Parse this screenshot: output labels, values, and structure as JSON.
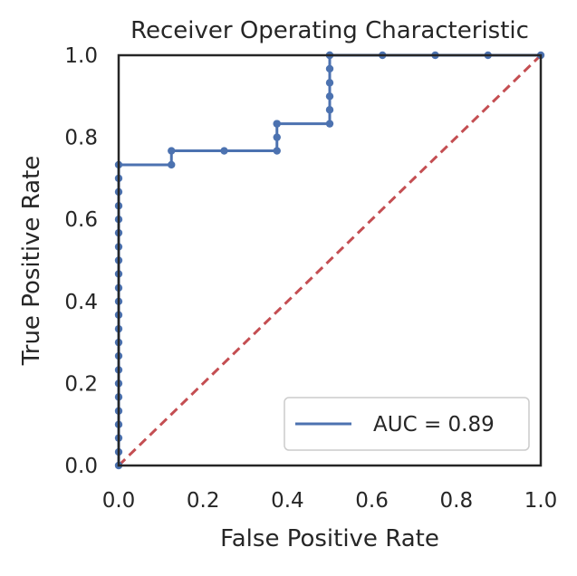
{
  "chart_data": {
    "type": "line",
    "title": "Receiver Operating Characteristic",
    "xlabel": "False Positive Rate",
    "ylabel": "True Positive Rate",
    "xlim": [
      0.0,
      1.0
    ],
    "ylim": [
      0.0,
      1.0
    ],
    "xticks": [
      "0.0",
      "0.2",
      "0.4",
      "0.6",
      "0.8",
      "1.0"
    ],
    "yticks": [
      "0.0",
      "0.2",
      "0.4",
      "0.6",
      "0.8",
      "1.0"
    ],
    "grid": false,
    "legend_position": "lower-right",
    "series": [
      {
        "name": "AUC = 0.89",
        "color": "#4c72b0",
        "style": "solid-with-markers",
        "x": [
          0,
          0,
          0,
          0,
          0,
          0,
          0,
          0,
          0,
          0,
          0,
          0,
          0,
          0,
          0,
          0,
          0,
          0,
          0,
          0,
          0,
          0,
          0,
          0.125,
          0.125,
          0.25,
          0.375,
          0.375,
          0.375,
          0.375,
          0.5,
          0.5,
          0.5,
          0.5,
          0.5,
          0.5,
          0.5,
          0.625,
          0.75,
          0.875,
          1.0
        ],
        "y": [
          0.0,
          0.033,
          0.067,
          0.1,
          0.133,
          0.167,
          0.2,
          0.233,
          0.267,
          0.3,
          0.333,
          0.367,
          0.4,
          0.433,
          0.467,
          0.5,
          0.533,
          0.567,
          0.6,
          0.633,
          0.667,
          0.7,
          0.733,
          0.733,
          0.767,
          0.767,
          0.767,
          0.8,
          0.833,
          0.833,
          0.833,
          0.867,
          0.9,
          0.933,
          0.967,
          1.0,
          1.0,
          1.0,
          1.0,
          1.0,
          1.0
        ]
      },
      {
        "name": "",
        "color": "#c44e52",
        "style": "dashed",
        "x": [
          0,
          1
        ],
        "y": [
          0,
          1
        ]
      }
    ]
  }
}
